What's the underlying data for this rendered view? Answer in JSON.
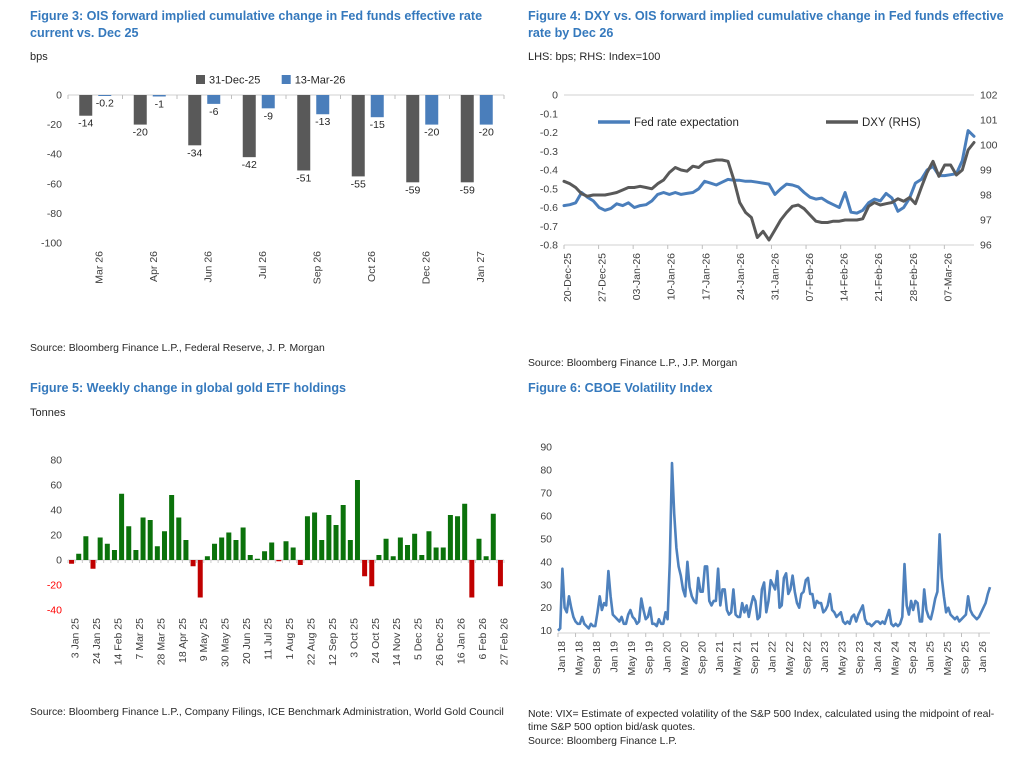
{
  "colors": {
    "title_blue": "#3579bd",
    "axis_line": "#d9d9d9",
    "tick_mark": "#bfbfbf",
    "tick_text": "#404040",
    "negative_tick_text": "#ff0000"
  },
  "chart_data": [
    {
      "id": "figure-3",
      "type": "bar",
      "title": "Figure 3: OIS forward implied cumulative change in Fed funds effective rate current vs. Dec 25",
      "ylabel": "bps",
      "source": "Source: Bloomberg Finance L.P., Federal Reserve, J. P. Morgan",
      "categories": [
        "Mar 26",
        "Apr 26",
        "Jun 26",
        "Jul 26",
        "Sep 26",
        "Oct 26",
        "Dec 26",
        "Jan 27"
      ],
      "series": [
        {
          "name": "31-Dec-25",
          "color": "#595959",
          "values": [
            -14,
            -20,
            -34,
            -42,
            -51,
            -55,
            -59,
            -59
          ]
        },
        {
          "name": "13-Mar-26",
          "color": "#4a7ebb",
          "values": [
            -0.2,
            -1,
            -6,
            -9,
            -13,
            -15,
            -20,
            -20
          ]
        }
      ],
      "ylim": [
        -100,
        0
      ],
      "ytick_step": 20,
      "legend_position": "top-center",
      "grid": false
    },
    {
      "id": "figure-4",
      "type": "line",
      "title": "Figure 4: DXY vs. OIS forward implied cumulative change in Fed funds effective rate by Dec 26",
      "axis_label": "LHS: bps; RHS: Index=100",
      "source": "Source: Bloomberg Finance L.P., J.P. Morgan",
      "x_labels": [
        "20-Dec-25",
        "27-Dec-25",
        "03-Jan-26",
        "10-Jan-26",
        "17-Jan-26",
        "24-Jan-26",
        "31-Jan-26",
        "07-Feb-26",
        "14-Feb-26",
        "21-Feb-26",
        "28-Feb-26",
        "07-Mar-26"
      ],
      "label_week_days": 7,
      "total_days": 83,
      "lhs_range": [
        -0.8,
        0
      ],
      "lhs_tick": 0.1,
      "rhs_range": [
        96,
        102
      ],
      "rhs_tick": 1,
      "legend_position": "top-inside",
      "grid": false,
      "series": [
        {
          "name": "Fed rate expectation",
          "axis": "lhs",
          "color": "#4a7ebb",
          "values": [
            -0.59,
            -0.585,
            -0.575,
            -0.52,
            -0.545,
            -0.565,
            -0.6,
            -0.615,
            -0.605,
            -0.58,
            -0.59,
            -0.575,
            -0.6,
            -0.59,
            -0.585,
            -0.565,
            -0.53,
            -0.52,
            -0.53,
            -0.52,
            -0.53,
            -0.525,
            -0.52,
            -0.5,
            -0.46,
            -0.47,
            -0.48,
            -0.465,
            -0.45,
            -0.455,
            -0.455,
            -0.46,
            -0.46,
            -0.465,
            -0.47,
            -0.475,
            -0.53,
            -0.5,
            -0.475,
            -0.48,
            -0.49,
            -0.52,
            -0.545,
            -0.555,
            -0.55,
            -0.57,
            -0.585,
            -0.6,
            -0.52,
            -0.625,
            -0.63,
            -0.615,
            -0.575,
            -0.555,
            -0.565,
            -0.525,
            -0.55,
            -0.62,
            -0.6,
            -0.55,
            -0.47,
            -0.45,
            -0.4,
            -0.38,
            -0.43,
            -0.43,
            -0.425,
            -0.42,
            -0.35,
            -0.19,
            -0.22
          ]
        },
        {
          "name": "DXY (RHS)",
          "axis": "rhs",
          "color": "#595959",
          "values": [
            98.55,
            98.45,
            98.3,
            98.05,
            97.95,
            98.0,
            98.0,
            98.0,
            98.05,
            98.1,
            98.2,
            98.3,
            98.3,
            98.35,
            98.3,
            98.25,
            98.45,
            98.6,
            98.9,
            99.1,
            99.0,
            98.95,
            99.15,
            99.1,
            99.3,
            99.35,
            99.4,
            99.4,
            99.35,
            98.6,
            97.7,
            97.3,
            97.1,
            96.3,
            96.55,
            96.2,
            96.6,
            97.0,
            97.3,
            97.55,
            97.6,
            97.45,
            97.2,
            96.95,
            96.9,
            96.9,
            96.95,
            96.95,
            97.0,
            97.0,
            97.0,
            97.05,
            97.55,
            97.7,
            97.6,
            97.65,
            97.7,
            97.85,
            97.75,
            97.9,
            97.65,
            98.3,
            98.9,
            99.35,
            98.75,
            99.2,
            99.2,
            98.8,
            99.0,
            99.8,
            100.1
          ]
        }
      ]
    },
    {
      "id": "figure-5",
      "type": "bar",
      "title": "Figure 5: Weekly change in global gold ETF holdings",
      "ylabel": "Tonnes",
      "source": "Source: Bloomberg Finance L.P., Company Filings, ICE Benchmark Administration, World Gold Council",
      "x_labels": [
        "3 Jan 25",
        "24 Jan 25",
        "14 Feb 25",
        "7 Mar 25",
        "28 Mar 25",
        "18 Apr 25",
        "9 May 25",
        "30 May 25",
        "20 Jun 25",
        "11 Jul 25",
        "1 Aug 25",
        "22 Aug 25",
        "12 Sep 25",
        "3 Oct 25",
        "24 Oct 25",
        "14 Nov 25",
        "5 Dec 25",
        "26 Dec 25",
        "16 Jan 26",
        "6 Feb 26",
        "27 Feb 26"
      ],
      "label_every": 3,
      "values": [
        -3,
        5,
        19,
        -7,
        18,
        13,
        8,
        53,
        27,
        8,
        34,
        32,
        11,
        23,
        52,
        34,
        16,
        -5,
        -30,
        3,
        13,
        18,
        22,
        16,
        26,
        4,
        1,
        7,
        14,
        -1,
        15,
        10,
        -4,
        35,
        38,
        16,
        36,
        28,
        44,
        16,
        64,
        -13,
        -21,
        4,
        17,
        3,
        18,
        12,
        21,
        4,
        23,
        10,
        10,
        36,
        35,
        45,
        -30,
        17,
        3,
        37,
        -21
      ],
      "positive_color": "#0b720b",
      "negative_color": "#c00000",
      "ylim": [
        -40,
        80
      ],
      "ytick_step": 20,
      "grid": false
    },
    {
      "id": "figure-6",
      "type": "line",
      "title": "Figure 6: CBOE Volatility Index",
      "note": "Note: VIX= Estimate of expected volatility of the S&P 500 Index, calculated using the midpoint of real-time S&P 500 option bid/ask quotes.",
      "source": "Source: Bloomberg Finance L.P.",
      "x_labels": [
        "Jan 18",
        "May 18",
        "Sep 18",
        "Jan 19",
        "May 19",
        "Sep 19",
        "Jan 20",
        "May 20",
        "Sep 20",
        "Jan 21",
        "May 21",
        "Sep 21",
        "Jan 22",
        "May 22",
        "Sep 22",
        "Jan 23",
        "May 23",
        "Sep 23",
        "Jan 24",
        "May 24",
        "Sep 24",
        "Jan 25",
        "May 25",
        "Sep 25",
        "Jan 26"
      ],
      "label_month_step": 4,
      "months_total": 98.5,
      "color": "#4e81bd",
      "ylim": [
        10,
        90
      ],
      "ytick_step": 10,
      "grid": false,
      "values": [
        10,
        11,
        37,
        20,
        18,
        25,
        20,
        16,
        14,
        13,
        13,
        16,
        13,
        12,
        11,
        13,
        12,
        12,
        18,
        25,
        19,
        22,
        21,
        36,
        25,
        17,
        16,
        15,
        14,
        16,
        13,
        13,
        17,
        19,
        16,
        15,
        13,
        14,
        24,
        19,
        15,
        16,
        20,
        13,
        13,
        12,
        15,
        13,
        13,
        18,
        15,
        40,
        83,
        61,
        46,
        38,
        34,
        28,
        25,
        40,
        29,
        25,
        23,
        22,
        33,
        27,
        27,
        38,
        38,
        23,
        21,
        23,
        23,
        37,
        21,
        28,
        28,
        19,
        17,
        18,
        28,
        17,
        16,
        16,
        22,
        18,
        21,
        16,
        21,
        25,
        23,
        15,
        16,
        28,
        31,
        18,
        23,
        32,
        30,
        28,
        36,
        20,
        21,
        33,
        35,
        26,
        28,
        34,
        27,
        22,
        20,
        26,
        27,
        32,
        33,
        26,
        26,
        20,
        23,
        22,
        22,
        18,
        19,
        21,
        26,
        19,
        18,
        16,
        17,
        18,
        14,
        13,
        14,
        13,
        16,
        17,
        14,
        17,
        19,
        21,
        15,
        13,
        13,
        12,
        13,
        14,
        14,
        13,
        14,
        13,
        16,
        19,
        13,
        12,
        13,
        12,
        13,
        16,
        39,
        21,
        17,
        23,
        19,
        23,
        22,
        14,
        14,
        28,
        19,
        16,
        15,
        19,
        24,
        27,
        52,
        33,
        25,
        18,
        20,
        17,
        16,
        15,
        16,
        14,
        15,
        16,
        17,
        25,
        19,
        17,
        16,
        15,
        16,
        18,
        20,
        22,
        26,
        29
      ]
    }
  ]
}
